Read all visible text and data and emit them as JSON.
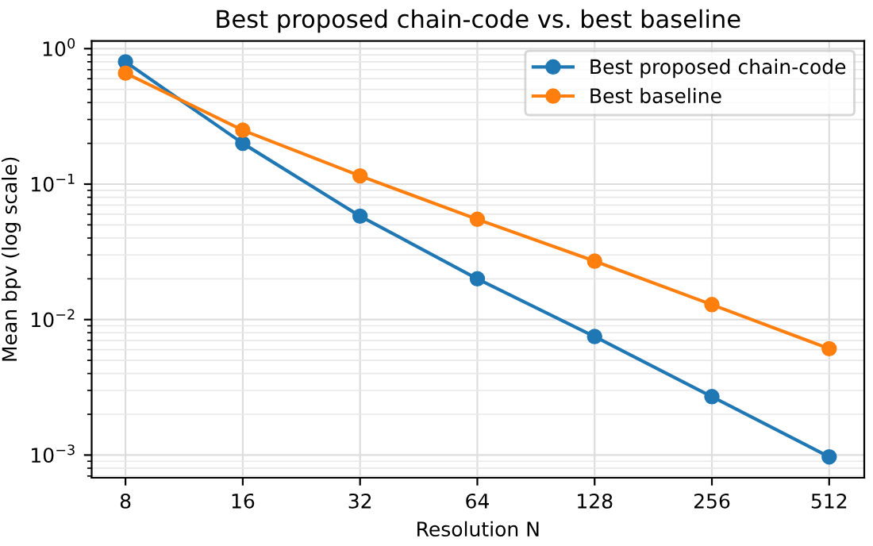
{
  "chart_data": {
    "type": "line",
    "title": "Best proposed chain-code vs. best baseline",
    "xlabel": "Resolution N",
    "ylabel": "Mean bpv (log scale)",
    "x": [
      8,
      16,
      32,
      64,
      128,
      256,
      512
    ],
    "series": [
      {
        "name": "Best proposed chain-code",
        "color": "#1f77b4",
        "values": [
          0.8,
          0.2,
          0.058,
          0.02,
          0.0075,
          0.0027,
          0.00097
        ]
      },
      {
        "name": "Best baseline",
        "color": "#ff7f0e",
        "values": [
          0.66,
          0.25,
          0.115,
          0.055,
          0.027,
          0.0129,
          0.0061
        ]
      }
    ],
    "log": "xy",
    "xlim": [
      6.55,
      630
    ],
    "ylim": [
      0.00068,
      1.14
    ],
    "xticks": [
      8,
      16,
      32,
      64,
      128,
      256,
      512
    ],
    "yticks": [
      {
        "value": 0.001,
        "label": "10$^{−3}$"
      },
      {
        "value": 0.01,
        "label": "10$^{−2}$"
      },
      {
        "value": 0.1,
        "label": "10$^{−1}$"
      },
      {
        "value": 1,
        "label": "10$^{0}$"
      }
    ],
    "grid": true,
    "legend": "top right",
    "marker": "circle",
    "line_style": "solid"
  }
}
